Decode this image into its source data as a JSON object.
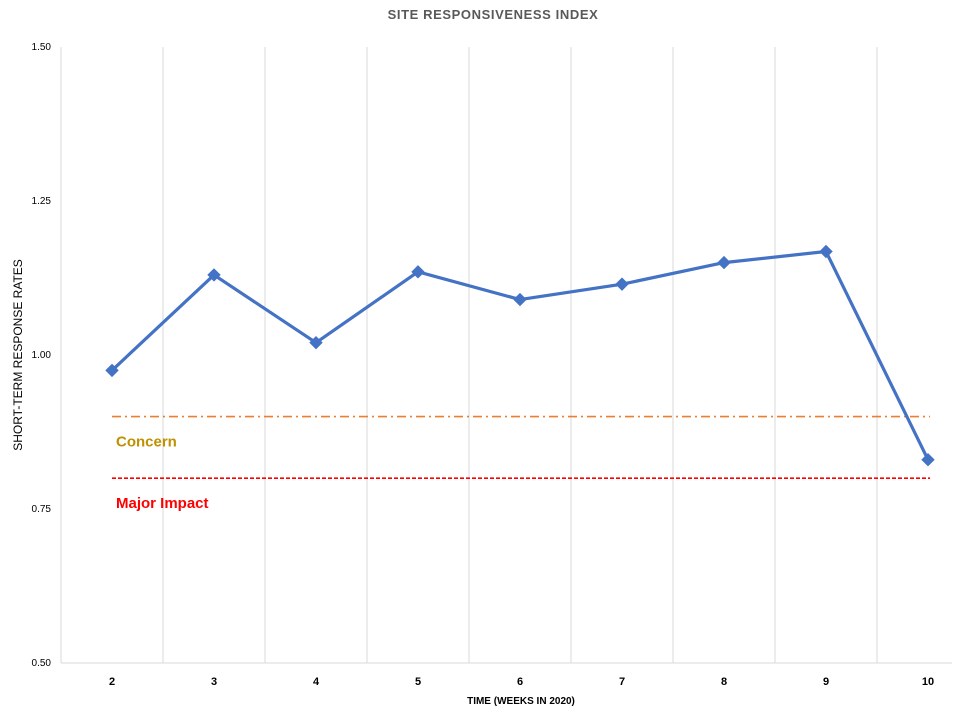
{
  "chart_data": {
    "type": "line",
    "title": "SITE RESPONSIVENESS INDEX",
    "xlabel": "TIME (WEEKS IN 2020)",
    "ylabel": "SHORT-TERM RESPONSE RATES",
    "categories": [
      "2",
      "3",
      "4",
      "5",
      "6",
      "7",
      "8",
      "9",
      "10"
    ],
    "y_ticks": [
      "0.50",
      "0.75",
      "1.00",
      "1.25",
      "1.50"
    ],
    "ylim": [
      0.5,
      1.5
    ],
    "grid": "vertical",
    "series": [
      {
        "values": [
          0.975,
          1.13,
          1.02,
          1.135,
          1.09,
          1.115,
          1.15,
          1.168,
          0.83
        ],
        "color": "#4472C4",
        "marker": "diamond"
      }
    ],
    "reference_lines": [
      {
        "label": "Concern",
        "value": 0.9,
        "color": "#ED7D31",
        "label_color": "#BF9000",
        "style": "dash-dot"
      },
      {
        "label": "Major Impact",
        "value": 0.8,
        "color": "#FF0000",
        "label_color": "#FF0000",
        "style": "dashed"
      }
    ]
  }
}
